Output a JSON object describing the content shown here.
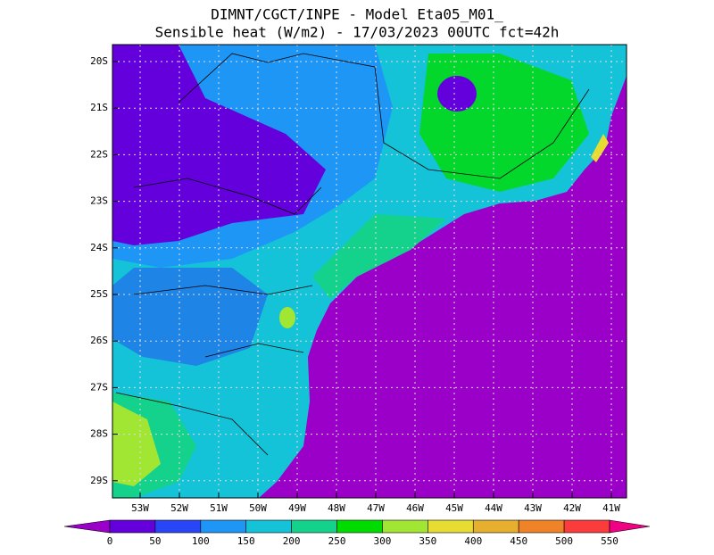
{
  "title": [
    "DIMNT/CGCT/INPE -  Model Eta05_M01_",
    "Sensible heat (W/m2) -  17/03/2023 00UTC fct=42h"
  ],
  "lat_labels": [
    "20S",
    "21S",
    "22S",
    "23S",
    "24S",
    "25S",
    "26S",
    "27S",
    "28S",
    "29S"
  ],
  "lon_labels": [
    "53W",
    "52W",
    "51W",
    "50W",
    "49W",
    "48W",
    "47W",
    "46W",
    "45W",
    "44W",
    "43W",
    "42W",
    "41W"
  ],
  "colorbar": {
    "ticks": [
      0,
      50,
      100,
      150,
      200,
      250,
      300,
      350,
      400,
      450,
      500,
      550
    ],
    "colors": [
      "#9b00c8",
      "#6400dc",
      "#2846f5",
      "#1e96f5",
      "#14c3d7",
      "#14d28c",
      "#00dc00",
      "#a0e632",
      "#e6dc32",
      "#e6af2d",
      "#f08228",
      "#fa3c3c",
      "#f00082"
    ]
  }
}
